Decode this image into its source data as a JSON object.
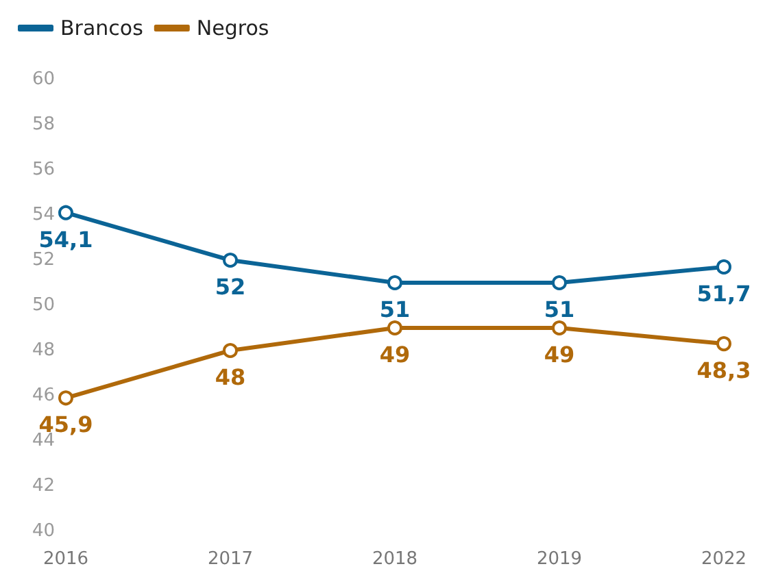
{
  "chart_data": {
    "type": "line",
    "categories": [
      "2016",
      "2017",
      "2018",
      "2019",
      "2022"
    ],
    "series": [
      {
        "name": "Brancos",
        "color": "#0b6496",
        "values": [
          54.1,
          52,
          51,
          51,
          51.7
        ],
        "value_labels": [
          "54,1",
          "52",
          "51",
          "51",
          "51,7"
        ]
      },
      {
        "name": "Negros",
        "color": "#b0690a",
        "values": [
          45.9,
          48,
          49,
          49,
          48.3
        ],
        "value_labels": [
          "45,9",
          "48",
          "49",
          "49",
          "48,3"
        ]
      }
    ],
    "ylim": [
      40,
      60
    ],
    "yticks": [
      40,
      42,
      44,
      46,
      48,
      50,
      52,
      54,
      56,
      58,
      60
    ],
    "grid": false,
    "legend": "top left",
    "marker": "circle",
    "line_style": "solid"
  }
}
